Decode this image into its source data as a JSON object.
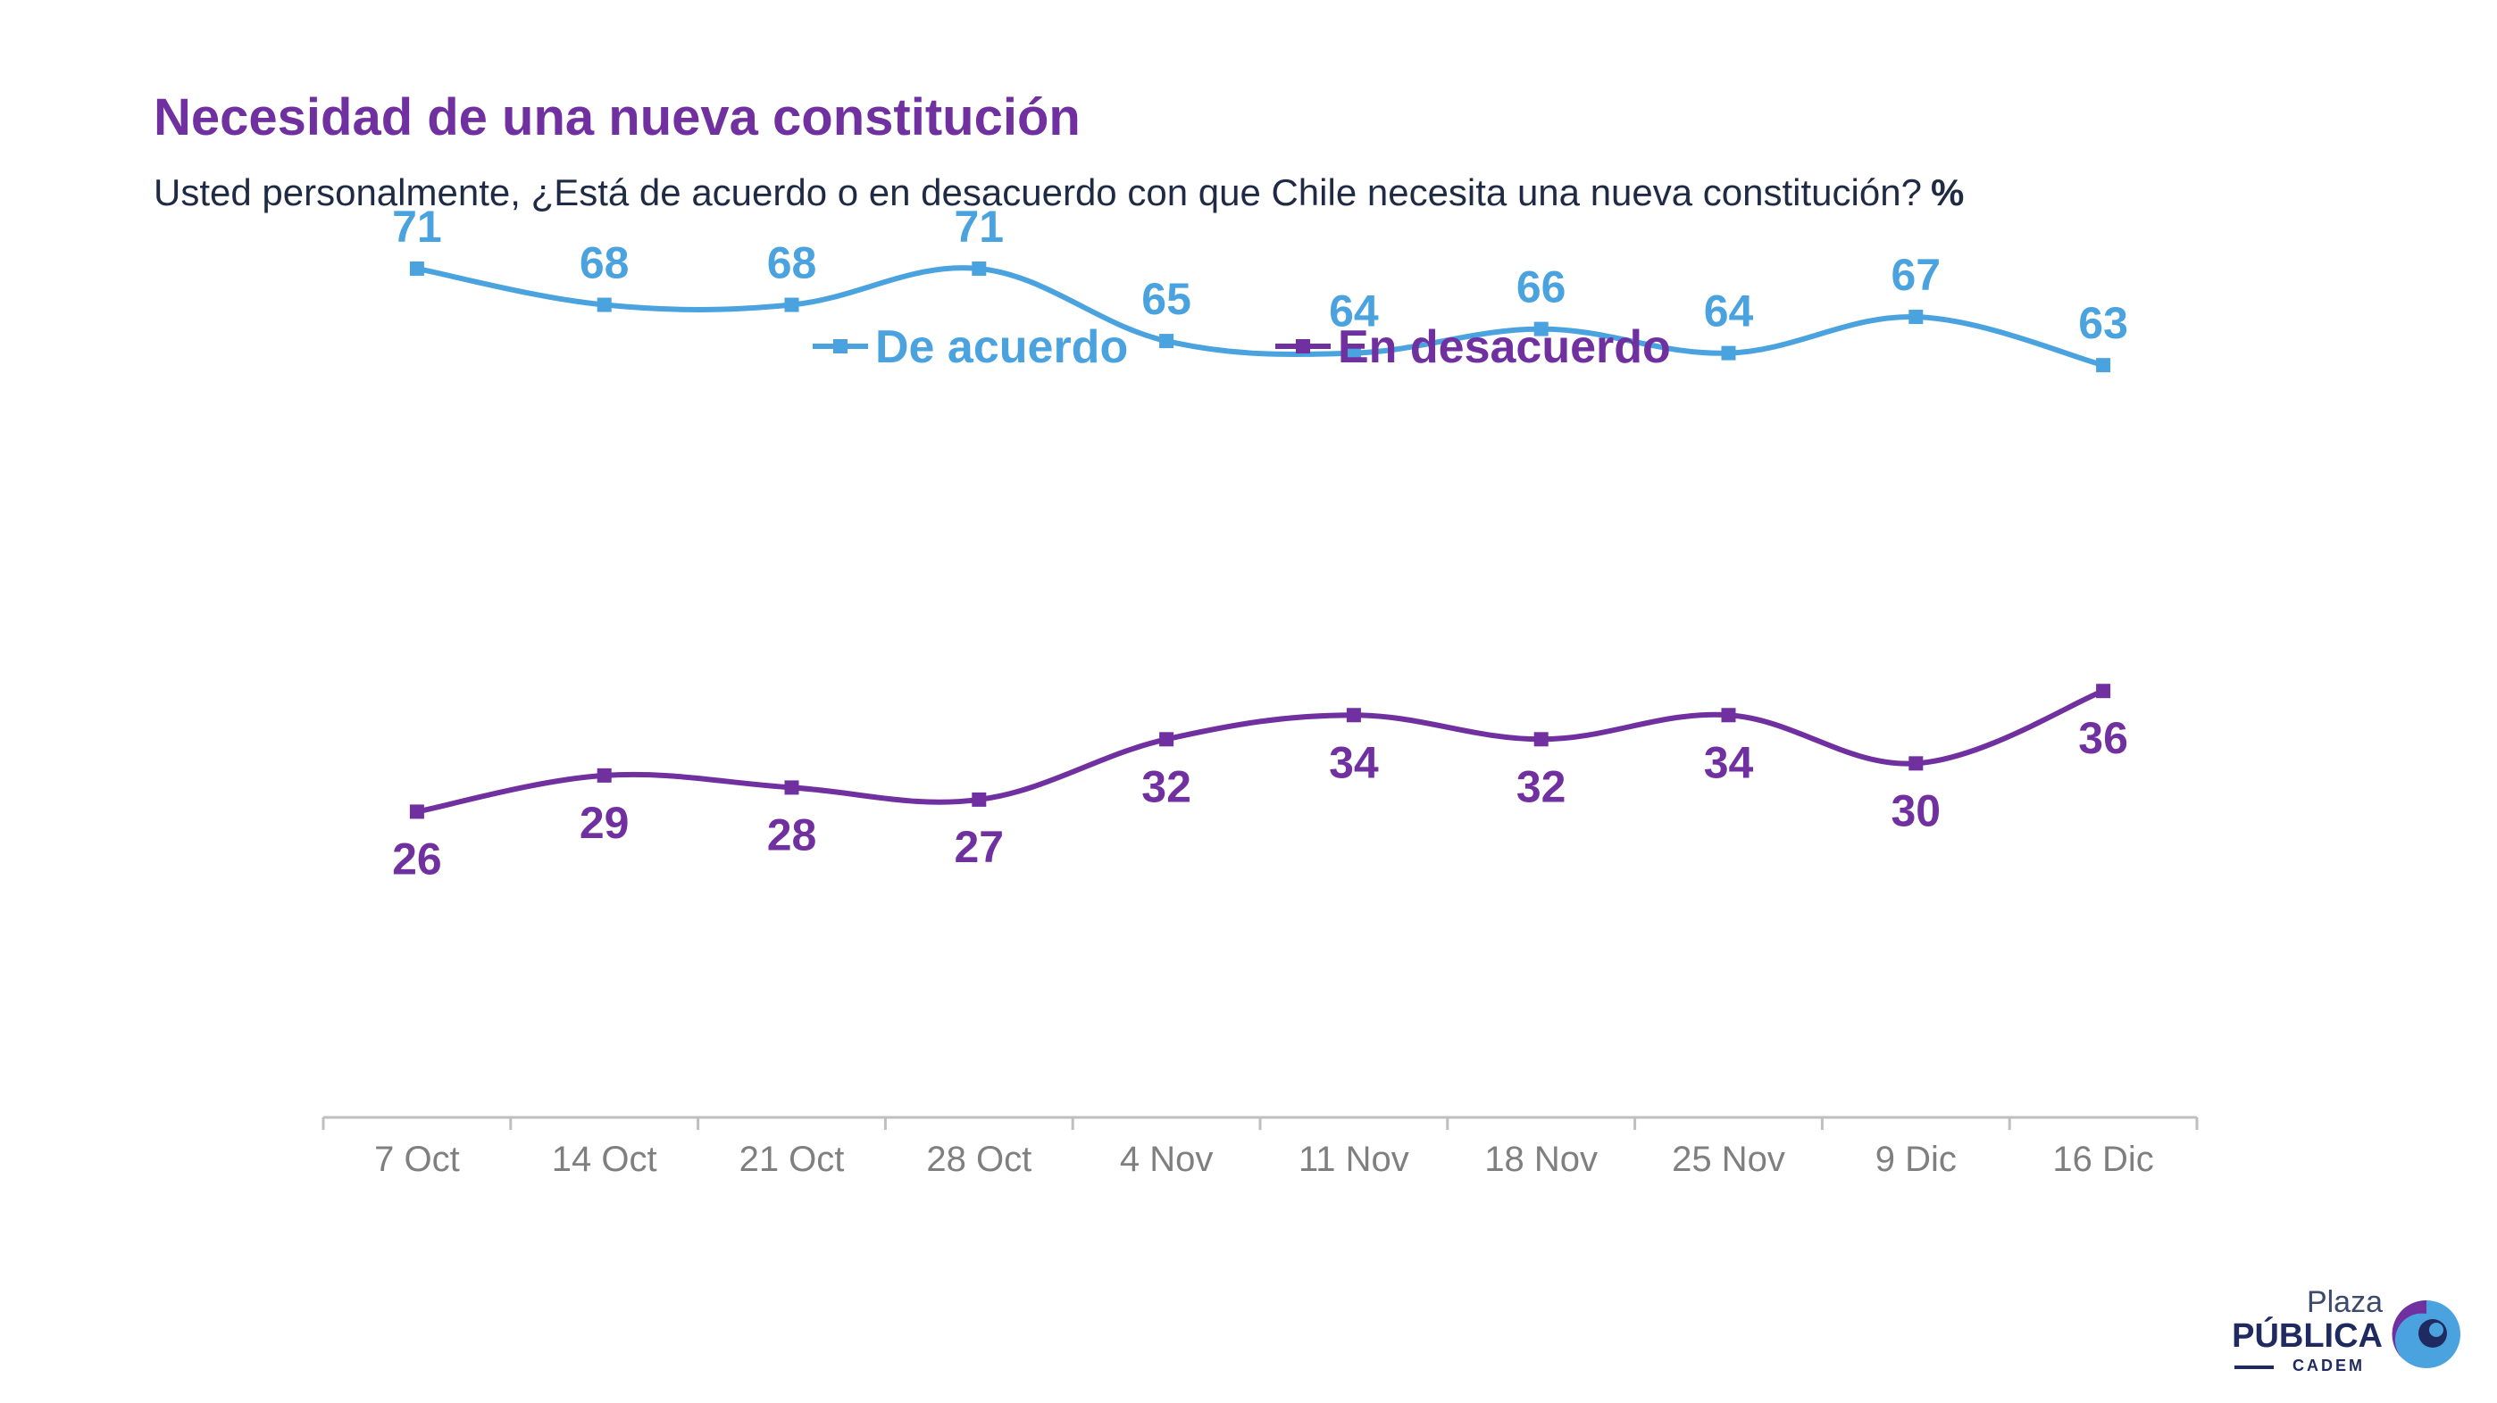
{
  "header": {
    "title": "Necesidad de una nueva constitución",
    "subtitle": "Usted personalmente, ¿Está de acuerdo o en desacuerdo con que Chile necesita una nueva constitución?",
    "unit": "%"
  },
  "chart_data": {
    "type": "line",
    "categories": [
      "7 Oct",
      "14 Oct",
      "21 Oct",
      "28 Oct",
      "4 Nov",
      "11 Nov",
      "18 Nov",
      "25 Nov",
      "9 Dic",
      "16 Dic"
    ],
    "series": [
      {
        "name": "De acuerdo",
        "color": "#4AA3DF",
        "values": [
          71,
          68,
          68,
          71,
          65,
          64,
          66,
          64,
          67,
          63
        ],
        "label_position": "above"
      },
      {
        "name": "En desacuerdo",
        "color": "#7030A0",
        "values": [
          26,
          29,
          28,
          27,
          32,
          34,
          32,
          34,
          30,
          36
        ],
        "label_position": "below"
      }
    ],
    "ylim": [
      0,
      100
    ],
    "grid": false,
    "legend_position": "top-center",
    "smooth": true,
    "axis_label_color": "#7F7F7F"
  },
  "logo": {
    "line1": "Plaza",
    "line2": "PÚBLICA",
    "line3": "CADEM",
    "colors": {
      "primary": "#1F2A60",
      "accent_blue": "#4AA3DF",
      "accent_purple": "#7030A0"
    }
  }
}
